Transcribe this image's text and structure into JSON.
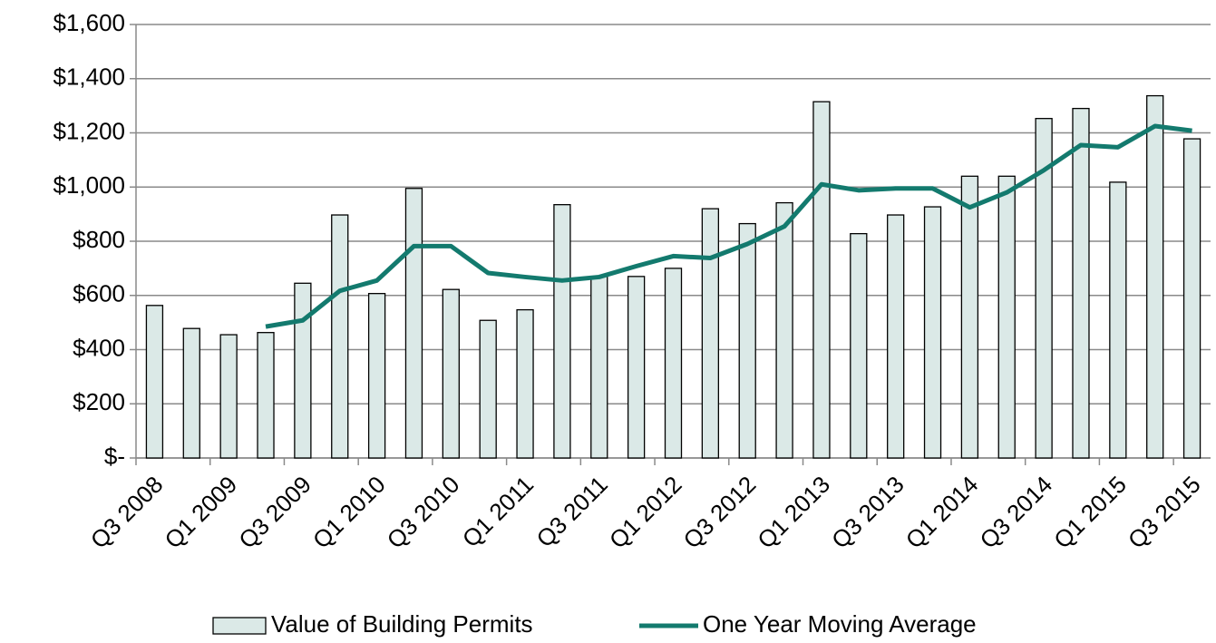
{
  "chart_data": {
    "type": "bar_line",
    "categories": [
      "Q3 2008",
      null,
      "Q1 2009",
      null,
      "Q3 2009",
      null,
      "Q1 2010",
      null,
      "Q3 2010",
      null,
      "Q1 2011",
      null,
      "Q3 2011",
      null,
      "Q1 2012",
      null,
      "Q3 2012",
      null,
      "Q1 2013",
      null,
      "Q3 2013",
      null,
      "Q1 2014",
      null,
      "Q3 2014",
      null,
      "Q1 2015",
      null,
      "Q3 2015"
    ],
    "series": [
      {
        "name": "Value of Building Permits",
        "type": "bar",
        "color": "#dbe9e7",
        "values": [
          563,
          478,
          455,
          463,
          645,
          897,
          607,
          995,
          622,
          508,
          547,
          935,
          670,
          670,
          700,
          920,
          865,
          942,
          1315,
          828,
          897,
          927,
          1040,
          1040,
          1253,
          1290,
          1018,
          1337,
          1178
        ]
      },
      {
        "name": "One Year Moving Average",
        "type": "line",
        "color": "#137a6e",
        "values": [
          null,
          null,
          null,
          485,
          508,
          617,
          655,
          782,
          782,
          683,
          668,
          655,
          668,
          708,
          745,
          738,
          790,
          855,
          1010,
          988,
          995,
          995,
          925,
          980,
          1062,
          1155,
          1147,
          1225,
          1208
        ]
      }
    ],
    "ylim": [
      0,
      1600
    ],
    "yticks": [
      {
        "value": 0,
        "label": "$-"
      },
      {
        "value": 200,
        "label": "$200"
      },
      {
        "value": 400,
        "label": "$400"
      },
      {
        "value": 600,
        "label": "$600"
      },
      {
        "value": 800,
        "label": "$800"
      },
      {
        "value": 1000,
        "label": "$1,000"
      },
      {
        "value": 1200,
        "label": "$1,200"
      },
      {
        "value": 1400,
        "label": "$1,400"
      },
      {
        "value": 1600,
        "label": "$1,600"
      }
    ],
    "grid": true,
    "legend": "bottom"
  }
}
